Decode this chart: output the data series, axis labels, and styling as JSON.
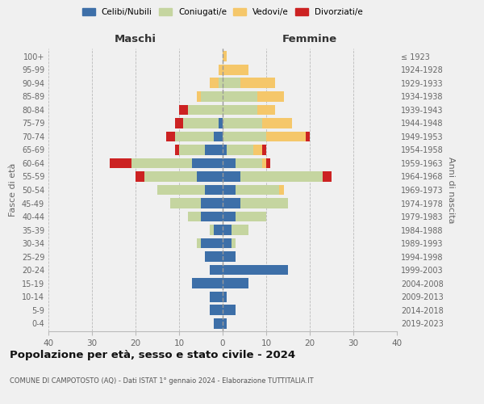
{
  "age_groups": [
    "0-4",
    "5-9",
    "10-14",
    "15-19",
    "20-24",
    "25-29",
    "30-34",
    "35-39",
    "40-44",
    "45-49",
    "50-54",
    "55-59",
    "60-64",
    "65-69",
    "70-74",
    "75-79",
    "80-84",
    "85-89",
    "90-94",
    "95-99",
    "100+"
  ],
  "birth_years": [
    "2019-2023",
    "2014-2018",
    "2009-2013",
    "2004-2008",
    "1999-2003",
    "1994-1998",
    "1989-1993",
    "1984-1988",
    "1979-1983",
    "1974-1978",
    "1969-1973",
    "1964-1968",
    "1959-1963",
    "1954-1958",
    "1949-1953",
    "1944-1948",
    "1939-1943",
    "1934-1938",
    "1929-1933",
    "1924-1928",
    "≤ 1923"
  ],
  "colors": {
    "celibi": "#3d6fa8",
    "coniugati": "#c5d5a0",
    "vedovi": "#f5c76a",
    "divorziati": "#cc2222"
  },
  "maschi": {
    "celibi": [
      2,
      3,
      3,
      7,
      3,
      4,
      5,
      2,
      5,
      5,
      4,
      6,
      7,
      4,
      2,
      1,
      0,
      0,
      0,
      0,
      0
    ],
    "coniugati": [
      0,
      0,
      0,
      0,
      0,
      0,
      1,
      1,
      3,
      7,
      11,
      12,
      14,
      6,
      9,
      8,
      8,
      5,
      1,
      0,
      0
    ],
    "vedovi": [
      0,
      0,
      0,
      0,
      0,
      0,
      0,
      0,
      0,
      0,
      0,
      0,
      0,
      0,
      0,
      0,
      0,
      1,
      2,
      1,
      0
    ],
    "divorziati": [
      0,
      0,
      0,
      0,
      0,
      0,
      0,
      0,
      0,
      0,
      0,
      2,
      5,
      1,
      2,
      2,
      2,
      0,
      0,
      0,
      0
    ]
  },
  "femmine": {
    "celibi": [
      1,
      3,
      1,
      6,
      15,
      3,
      2,
      2,
      3,
      4,
      3,
      4,
      3,
      1,
      0,
      0,
      0,
      0,
      0,
      0,
      0
    ],
    "coniugati": [
      0,
      0,
      0,
      0,
      0,
      0,
      1,
      4,
      7,
      11,
      10,
      19,
      6,
      6,
      10,
      9,
      8,
      8,
      4,
      0,
      0
    ],
    "vedovi": [
      0,
      0,
      0,
      0,
      0,
      0,
      0,
      0,
      0,
      0,
      1,
      0,
      1,
      2,
      9,
      7,
      4,
      6,
      8,
      6,
      1
    ],
    "divorziati": [
      0,
      0,
      0,
      0,
      0,
      0,
      0,
      0,
      0,
      0,
      0,
      2,
      1,
      1,
      1,
      0,
      0,
      0,
      0,
      0,
      0
    ]
  },
  "title": "Popolazione per età, sesso e stato civile - 2024",
  "subtitle": "COMUNE DI CAMPOTOSTO (AQ) - Dati ISTAT 1° gennaio 2024 - Elaborazione TUTTITALIA.IT",
  "xlabel_left": "Maschi",
  "xlabel_right": "Femmine",
  "ylabel_left": "Fasce di età",
  "ylabel_right": "Anni di nascita",
  "xlim": 40,
  "background_color": "#f0f0f0"
}
